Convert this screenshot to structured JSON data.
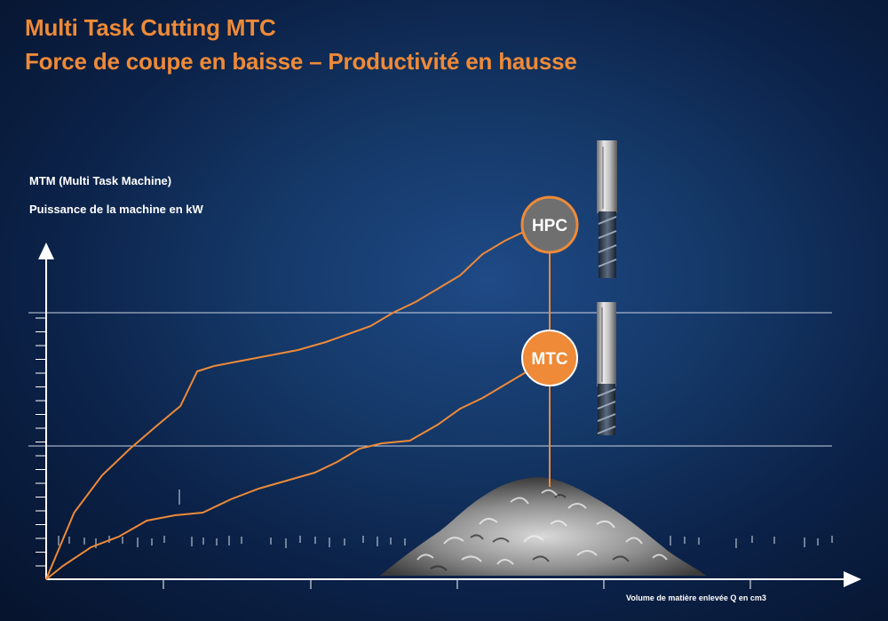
{
  "header": {
    "title_line1": "Multi Task Cutting MTC",
    "title_line2": "Force de coupe en baisse – Productivité en hausse"
  },
  "colors": {
    "accent": "#ee8a38",
    "background": "#0e2a55",
    "axis": "#ffffff",
    "hpc_circle": "#6f6f6f"
  },
  "chart_data": {
    "type": "line",
    "ylabel_line1": "MTM (Multi Task Machine)",
    "ylabel_line2": "Puissance de la machine en kW",
    "xlabel": "Volume de matière enlevée Q en cm3",
    "grid": "two horizontal reference lines",
    "series": [
      {
        "name": "HPC",
        "x": [
          0,
          5,
          10,
          15,
          20,
          24,
          27,
          30,
          35,
          40,
          45,
          50,
          54,
          58,
          62,
          66,
          70,
          74,
          78,
          82,
          86,
          90
        ],
        "y": [
          0,
          25,
          39,
          49,
          58,
          65,
          78,
          80,
          82,
          84,
          86,
          89,
          92,
          95,
          100,
          104,
          109,
          114,
          122,
          127,
          131,
          133
        ]
      },
      {
        "name": "MTC",
        "x": [
          0,
          3,
          8,
          13,
          18,
          23,
          28,
          33,
          38,
          43,
          48,
          52,
          56,
          60,
          65,
          70,
          74,
          78,
          82,
          86,
          90
        ],
        "y": [
          0,
          5,
          12,
          16,
          22,
          24,
          25,
          30,
          34,
          37,
          40,
          44,
          49,
          51,
          52,
          58,
          64,
          68,
          73,
          78,
          83
        ]
      }
    ],
    "markers": [
      {
        "label": "HPC",
        "x": 90,
        "y": 133
      },
      {
        "label": "MTC",
        "x": 90,
        "y": 83
      }
    ],
    "reference_lines_y": [
      100,
      50
    ],
    "xlim": [
      0,
      140
    ],
    "ylim": [
      0,
      150
    ]
  }
}
